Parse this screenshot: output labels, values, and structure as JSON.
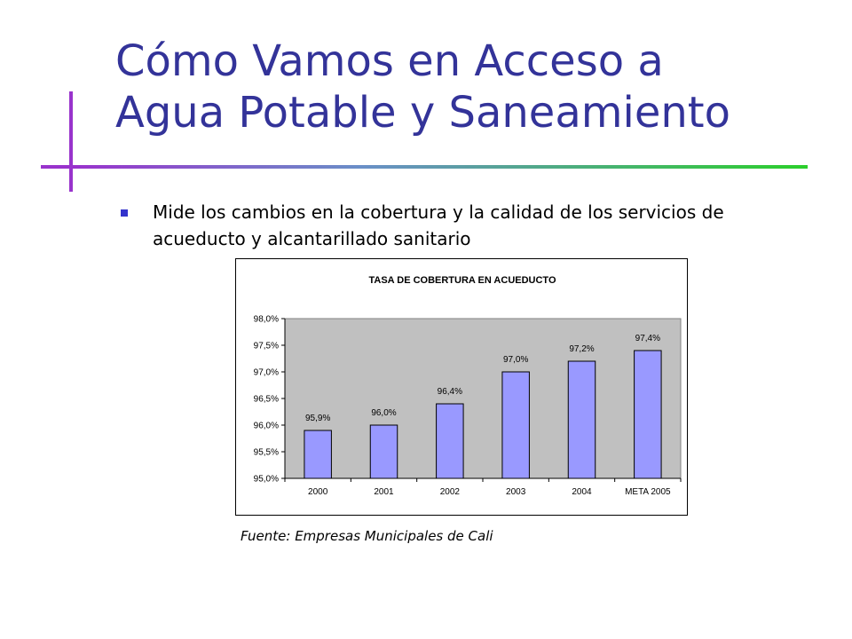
{
  "slide": {
    "title_line1": "Cómo Vamos en Acceso a",
    "title_line2": "Agua Potable y Saneamiento",
    "bullet": "Mide los cambios en la cobertura y la calidad de los servicios de acueducto y alcantarillado sanitario",
    "source": "Fuente: Empresas Municipales de Cali",
    "accent_color": "#333399"
  },
  "chart_data": {
    "type": "bar",
    "title": "TASA DE COBERTURA EN ACUEDUCTO",
    "categories": [
      "2000",
      "2001",
      "2002",
      "2003",
      "2004",
      "META 2005"
    ],
    "values": [
      95.9,
      96.0,
      96.4,
      97.0,
      97.2,
      97.4
    ],
    "data_labels": [
      "95,9%",
      "96,0%",
      "96,4%",
      "97,0%",
      "97,2%",
      "97,4%"
    ],
    "yticks": [
      "95,0%",
      "95,5%",
      "96,0%",
      "96,5%",
      "97,0%",
      "97,5%",
      "98,0%"
    ],
    "ylim": [
      95.0,
      98.0
    ],
    "xlabel": "",
    "ylabel": "",
    "grid": false,
    "legend": "none",
    "bar_color": "#9999ff",
    "plot_background": "#c0c0c0"
  }
}
